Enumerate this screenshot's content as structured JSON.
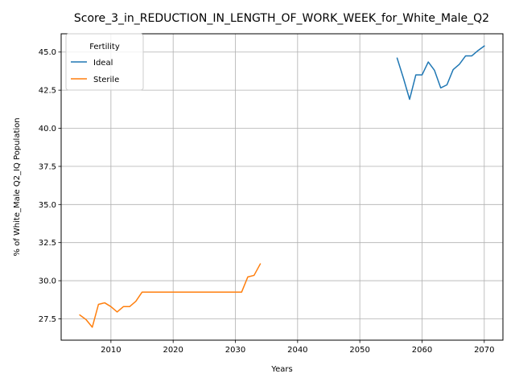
{
  "chart_data": {
    "type": "line",
    "title": "Score_3_in_REDUCTION_IN_LENGTH_OF_WORK_WEEK_for_White_Male_Q2",
    "xlabel": "Years",
    "ylabel": "% of White_Male Q2_IQ Population",
    "xlim": [
      2002,
      2073
    ],
    "ylim": [
      26.1,
      46.2
    ],
    "xticks": [
      2010,
      2020,
      2030,
      2040,
      2050,
      2060,
      2070
    ],
    "yticks": [
      27.5,
      30.0,
      32.5,
      35.0,
      37.5,
      40.0,
      42.5,
      45.0
    ],
    "grid": true,
    "legend": {
      "title": "Fertility",
      "placement": "top-left"
    },
    "series": [
      {
        "name": "Ideal",
        "color": "#1f77b4",
        "x": [
          2056,
          2057,
          2058,
          2059,
          2060,
          2061,
          2062,
          2063,
          2064,
          2065,
          2066,
          2067,
          2068,
          2069,
          2070
        ],
        "values": [
          44.6,
          43.3,
          41.9,
          43.5,
          43.5,
          44.35,
          43.8,
          42.65,
          42.85,
          43.85,
          44.2,
          44.75,
          44.75,
          45.1,
          45.4
        ]
      },
      {
        "name": "Sterile",
        "color": "#ff7f0e",
        "x": [
          2005,
          2006,
          2007,
          2008,
          2009,
          2010,
          2011,
          2012,
          2013,
          2014,
          2015,
          2016,
          2017,
          2018,
          2019,
          2020,
          2021,
          2022,
          2023,
          2024,
          2025,
          2026,
          2027,
          2028,
          2029,
          2030,
          2031,
          2032,
          2033,
          2034
        ],
        "values": [
          27.75,
          27.45,
          26.95,
          28.45,
          28.55,
          28.3,
          27.95,
          28.3,
          28.3,
          28.65,
          29.25,
          29.25,
          29.25,
          29.25,
          29.25,
          29.25,
          29.25,
          29.25,
          29.25,
          29.25,
          29.25,
          29.25,
          29.25,
          29.25,
          29.25,
          29.25,
          29.25,
          30.25,
          30.35,
          31.1
        ]
      }
    ]
  }
}
